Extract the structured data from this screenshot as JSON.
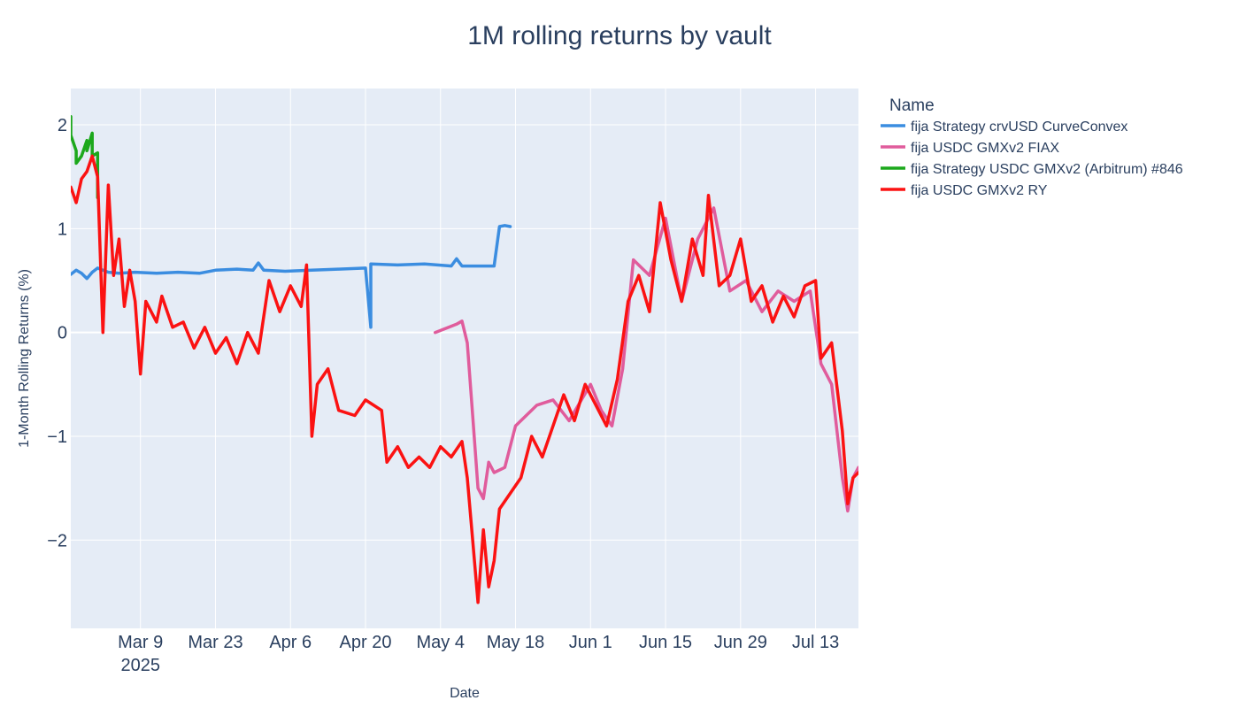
{
  "chart_data": {
    "type": "line",
    "title": "1M rolling returns by vault",
    "xlabel": "Date",
    "ylabel": "1-Month Rolling Returns (%)",
    "x_range": [
      "2025-02-24",
      "2025-07-21"
    ],
    "ylim": [
      -2.85,
      2.35
    ],
    "x_ticks": [
      {
        "date": "2025-03-09",
        "label": "Mar 9",
        "sublabel": "2025"
      },
      {
        "date": "2025-03-23",
        "label": "Mar 23"
      },
      {
        "date": "2025-04-06",
        "label": "Apr 6"
      },
      {
        "date": "2025-04-20",
        "label": "Apr 20"
      },
      {
        "date": "2025-05-04",
        "label": "May 4"
      },
      {
        "date": "2025-05-18",
        "label": "May 18"
      },
      {
        "date": "2025-06-01",
        "label": "Jun 1"
      },
      {
        "date": "2025-06-15",
        "label": "Jun 15"
      },
      {
        "date": "2025-06-29",
        "label": "Jun 29"
      },
      {
        "date": "2025-07-13",
        "label": "Jul 13"
      }
    ],
    "y_ticks": [
      {
        "value": 2,
        "label": "2"
      },
      {
        "value": 1,
        "label": "1"
      },
      {
        "value": 0,
        "label": "0"
      },
      {
        "value": -1,
        "label": "−1"
      },
      {
        "value": -2,
        "label": "−2"
      }
    ],
    "grid": true,
    "legend": {
      "title": "Name",
      "placement": "right"
    },
    "series": [
      {
        "name": "fija Strategy crvUSD CurveConvex",
        "color": "#3b8de0",
        "points": [
          [
            "2025-02-24",
            0.56
          ],
          [
            "2025-02-25",
            0.6
          ],
          [
            "2025-02-26",
            0.57
          ],
          [
            "2025-02-27",
            0.52
          ],
          [
            "2025-02-28",
            0.58
          ],
          [
            "2025-03-01",
            0.62
          ],
          [
            "2025-03-03",
            0.58
          ],
          [
            "2025-03-05",
            0.57
          ],
          [
            "2025-03-08",
            0.58
          ],
          [
            "2025-03-12",
            0.57
          ],
          [
            "2025-03-16",
            0.58
          ],
          [
            "2025-03-20",
            0.57
          ],
          [
            "2025-03-23",
            0.6
          ],
          [
            "2025-03-27",
            0.61
          ],
          [
            "2025-03-30",
            0.6
          ],
          [
            "2025-03-31",
            0.67
          ],
          [
            "2025-04-01",
            0.6
          ],
          [
            "2025-04-05",
            0.59
          ],
          [
            "2025-04-10",
            0.6
          ],
          [
            "2025-04-15",
            0.61
          ],
          [
            "2025-04-20",
            0.62
          ],
          [
            "2025-04-21",
            0.05
          ],
          [
            "2025-04-21",
            0.66
          ],
          [
            "2025-04-26",
            0.65
          ],
          [
            "2025-05-01",
            0.66
          ],
          [
            "2025-05-06",
            0.64
          ],
          [
            "2025-05-07",
            0.71
          ],
          [
            "2025-05-08",
            0.64
          ],
          [
            "2025-05-14",
            0.64
          ],
          [
            "2025-05-15",
            1.02
          ],
          [
            "2025-05-16",
            1.03
          ],
          [
            "2025-05-17",
            1.02
          ]
        ]
      },
      {
        "name": "fija USDC GMXv2 FIAX",
        "color": "#e05c9c",
        "points": [
          [
            "2025-05-03",
            0.0
          ],
          [
            "2025-05-07",
            0.08
          ],
          [
            "2025-05-08",
            0.11
          ],
          [
            "2025-05-09",
            -0.1
          ],
          [
            "2025-05-10",
            -0.8
          ],
          [
            "2025-05-11",
            -1.5
          ],
          [
            "2025-05-12",
            -1.6
          ],
          [
            "2025-05-13",
            -1.25
          ],
          [
            "2025-05-14",
            -1.35
          ],
          [
            "2025-05-16",
            -1.3
          ],
          [
            "2025-05-18",
            -0.9
          ],
          [
            "2025-05-20",
            -0.8
          ],
          [
            "2025-05-22",
            -0.7
          ],
          [
            "2025-05-25",
            -0.65
          ],
          [
            "2025-05-28",
            -0.85
          ],
          [
            "2025-06-01",
            -0.5
          ],
          [
            "2025-06-03",
            -0.75
          ],
          [
            "2025-06-05",
            -0.9
          ],
          [
            "2025-06-07",
            -0.35
          ],
          [
            "2025-06-09",
            0.7
          ],
          [
            "2025-06-12",
            0.55
          ],
          [
            "2025-06-15",
            1.1
          ],
          [
            "2025-06-18",
            0.3
          ],
          [
            "2025-06-21",
            0.9
          ],
          [
            "2025-06-24",
            1.2
          ],
          [
            "2025-06-27",
            0.4
          ],
          [
            "2025-06-30",
            0.5
          ],
          [
            "2025-07-03",
            0.2
          ],
          [
            "2025-07-06",
            0.4
          ],
          [
            "2025-07-09",
            0.3
          ],
          [
            "2025-07-12",
            0.4
          ],
          [
            "2025-07-14",
            -0.3
          ],
          [
            "2025-07-16",
            -0.5
          ],
          [
            "2025-07-18",
            -1.4
          ],
          [
            "2025-07-19",
            -1.72
          ],
          [
            "2025-07-20",
            -1.4
          ],
          [
            "2025-07-21",
            -1.3
          ]
        ]
      },
      {
        "name": "fija Strategy USDC GMXv2 (Arbitrum) #846",
        "color": "#1ca81c",
        "points": [
          [
            "2025-02-24",
            2.08
          ],
          [
            "2025-02-24",
            1.9
          ],
          [
            "2025-02-25",
            1.75
          ],
          [
            "2025-02-25",
            1.63
          ],
          [
            "2025-02-26",
            1.7
          ],
          [
            "2025-02-27",
            1.85
          ],
          [
            "2025-02-27",
            1.75
          ],
          [
            "2025-02-28",
            1.92
          ],
          [
            "2025-02-28",
            1.7
          ],
          [
            "2025-03-01",
            1.73
          ],
          [
            "2025-03-01",
            1.3
          ]
        ]
      },
      {
        "name": "fija USDC GMXv2 RY",
        "color": "#fb1212",
        "points": [
          [
            "2025-02-24",
            1.4
          ],
          [
            "2025-02-25",
            1.25
          ],
          [
            "2025-02-26",
            1.48
          ],
          [
            "2025-02-27",
            1.55
          ],
          [
            "2025-02-28",
            1.7
          ],
          [
            "2025-03-01",
            1.5
          ],
          [
            "2025-03-02",
            0.0
          ],
          [
            "2025-03-03",
            1.42
          ],
          [
            "2025-03-04",
            0.55
          ],
          [
            "2025-03-05",
            0.9
          ],
          [
            "2025-03-06",
            0.25
          ],
          [
            "2025-03-07",
            0.6
          ],
          [
            "2025-03-08",
            0.3
          ],
          [
            "2025-03-09",
            -0.4
          ],
          [
            "2025-03-10",
            0.3
          ],
          [
            "2025-03-12",
            0.1
          ],
          [
            "2025-03-13",
            0.35
          ],
          [
            "2025-03-15",
            0.05
          ],
          [
            "2025-03-17",
            0.1
          ],
          [
            "2025-03-19",
            -0.15
          ],
          [
            "2025-03-21",
            0.05
          ],
          [
            "2025-03-23",
            -0.2
          ],
          [
            "2025-03-25",
            -0.05
          ],
          [
            "2025-03-27",
            -0.3
          ],
          [
            "2025-03-29",
            0.0
          ],
          [
            "2025-03-31",
            -0.2
          ],
          [
            "2025-04-02",
            0.5
          ],
          [
            "2025-04-04",
            0.2
          ],
          [
            "2025-04-06",
            0.45
          ],
          [
            "2025-04-08",
            0.25
          ],
          [
            "2025-04-09",
            0.65
          ],
          [
            "2025-04-10",
            -1.0
          ],
          [
            "2025-04-11",
            -0.5
          ],
          [
            "2025-04-13",
            -0.35
          ],
          [
            "2025-04-15",
            -0.75
          ],
          [
            "2025-04-18",
            -0.8
          ],
          [
            "2025-04-20",
            -0.65
          ],
          [
            "2025-04-23",
            -0.75
          ],
          [
            "2025-04-24",
            -1.25
          ],
          [
            "2025-04-26",
            -1.1
          ],
          [
            "2025-04-28",
            -1.3
          ],
          [
            "2025-04-30",
            -1.2
          ],
          [
            "2025-05-02",
            -1.3
          ],
          [
            "2025-05-04",
            -1.1
          ],
          [
            "2025-05-06",
            -1.2
          ],
          [
            "2025-05-08",
            -1.05
          ],
          [
            "2025-05-09",
            -1.4
          ],
          [
            "2025-05-10",
            -2.0
          ],
          [
            "2025-05-11",
            -2.6
          ],
          [
            "2025-05-12",
            -1.9
          ],
          [
            "2025-05-13",
            -2.45
          ],
          [
            "2025-05-14",
            -2.2
          ],
          [
            "2025-05-15",
            -1.7
          ],
          [
            "2025-05-17",
            -1.55
          ],
          [
            "2025-05-19",
            -1.4
          ],
          [
            "2025-05-21",
            -1.0
          ],
          [
            "2025-05-23",
            -1.2
          ],
          [
            "2025-05-25",
            -0.9
          ],
          [
            "2025-05-27",
            -0.6
          ],
          [
            "2025-05-29",
            -0.85
          ],
          [
            "2025-05-31",
            -0.5
          ],
          [
            "2025-06-02",
            -0.7
          ],
          [
            "2025-06-04",
            -0.9
          ],
          [
            "2025-06-06",
            -0.45
          ],
          [
            "2025-06-08",
            0.3
          ],
          [
            "2025-06-10",
            0.55
          ],
          [
            "2025-06-12",
            0.2
          ],
          [
            "2025-06-14",
            1.25
          ],
          [
            "2025-06-16",
            0.7
          ],
          [
            "2025-06-18",
            0.3
          ],
          [
            "2025-06-20",
            0.9
          ],
          [
            "2025-06-22",
            0.55
          ],
          [
            "2025-06-23",
            1.32
          ],
          [
            "2025-06-25",
            0.45
          ],
          [
            "2025-06-27",
            0.55
          ],
          [
            "2025-06-29",
            0.9
          ],
          [
            "2025-07-01",
            0.3
          ],
          [
            "2025-07-03",
            0.45
          ],
          [
            "2025-07-05",
            0.1
          ],
          [
            "2025-07-07",
            0.35
          ],
          [
            "2025-07-09",
            0.15
          ],
          [
            "2025-07-11",
            0.45
          ],
          [
            "2025-07-13",
            0.5
          ],
          [
            "2025-07-14",
            -0.25
          ],
          [
            "2025-07-16",
            -0.1
          ],
          [
            "2025-07-18",
            -0.95
          ],
          [
            "2025-07-19",
            -1.65
          ],
          [
            "2025-07-20",
            -1.4
          ],
          [
            "2025-07-21",
            -1.35
          ]
        ]
      }
    ]
  }
}
